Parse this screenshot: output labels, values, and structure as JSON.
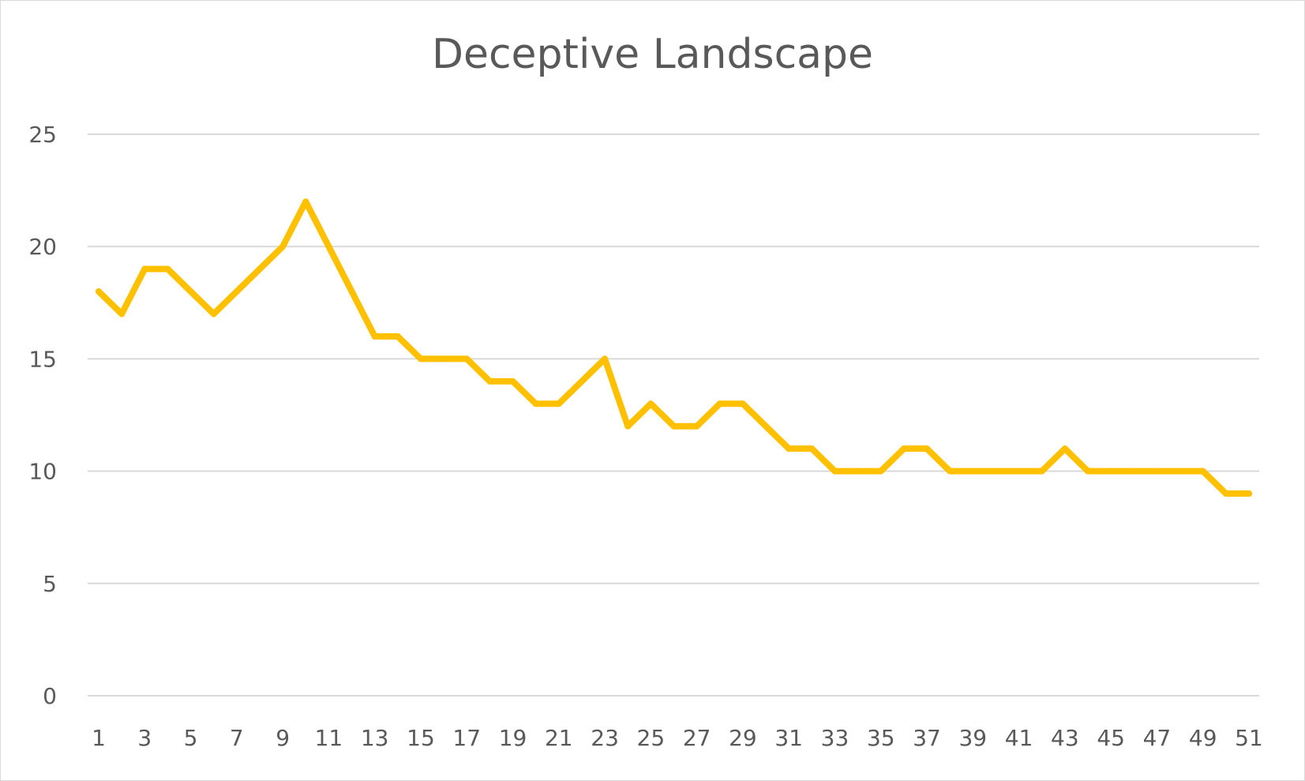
{
  "chart_data": {
    "type": "line",
    "title": "Deceptive Landscape",
    "xlabel": "",
    "ylabel": "",
    "ylim": [
      0,
      25
    ],
    "yticks": [
      0,
      5,
      10,
      15,
      20,
      25
    ],
    "x": [
      1,
      2,
      3,
      4,
      5,
      6,
      7,
      8,
      9,
      10,
      11,
      12,
      13,
      14,
      15,
      16,
      17,
      18,
      19,
      20,
      21,
      22,
      23,
      24,
      25,
      26,
      27,
      28,
      29,
      30,
      31,
      32,
      33,
      34,
      35,
      36,
      37,
      38,
      39,
      40,
      41,
      42,
      43,
      44,
      45,
      46,
      47,
      48,
      49,
      50,
      51
    ],
    "xtick_labels": [
      "1",
      "3",
      "5",
      "7",
      "9",
      "11",
      "13",
      "15",
      "17",
      "19",
      "21",
      "23",
      "25",
      "27",
      "29",
      "31",
      "33",
      "35",
      "37",
      "39",
      "41",
      "43",
      "45",
      "47",
      "49",
      "51"
    ],
    "series": [
      {
        "values": [
          18,
          17,
          19,
          19,
          18,
          17,
          18,
          19,
          20,
          22,
          20,
          18,
          16,
          16,
          15,
          15,
          15,
          14,
          14,
          13,
          13,
          14,
          15,
          12,
          13,
          12,
          12,
          13,
          13,
          12,
          11,
          11,
          10,
          10,
          10,
          11,
          11,
          10,
          10,
          10,
          10,
          10,
          11,
          10,
          10,
          10,
          10,
          10,
          10,
          9,
          9
        ],
        "color": "#FFC000"
      }
    ],
    "grid": true,
    "legend": "none",
    "gridline_color": "#d9d9d9",
    "text_color": "#595959"
  }
}
